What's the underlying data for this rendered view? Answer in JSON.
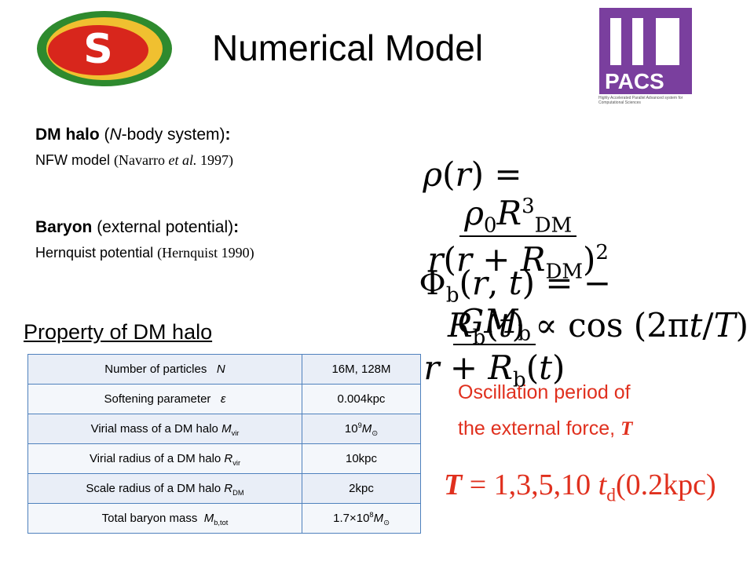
{
  "header": {
    "title": "Numerical Model",
    "logo_right_text": "PACS",
    "logo_right_caption": "Highly Accelerated Parallel Advanced system for Computational Sciences"
  },
  "dm_halo": {
    "heading": [
      {
        "text": "DM halo",
        "style": "b"
      },
      " (",
      {
        "text": "N",
        "style": "i"
      },
      "-body system)",
      {
        "text": ":",
        "style": "b"
      }
    ],
    "model": [
      "NFW model ",
      {
        "text": "(Navarro ",
        "style": "serif"
      },
      {
        "text": "et al.",
        "style": "serif-i"
      },
      {
        "text": " 1997)",
        "style": "serif"
      }
    ],
    "formula": {
      "lhs": [
        {
          "text": "ρ",
          "style": "i"
        },
        "(",
        {
          "text": "r",
          "style": "i"
        },
        ") ="
      ],
      "num": [
        {
          "text": "ρ",
          "style": "i"
        },
        {
          "text": "0",
          "style": "sub"
        },
        {
          "text": "R",
          "style": "i"
        },
        {
          "text": "3",
          "style": "sup"
        },
        {
          "text": "DM",
          "style": "sub"
        }
      ],
      "den": [
        {
          "text": "r",
          "style": "i"
        },
        "(",
        {
          "text": "r",
          "style": "i"
        },
        " + ",
        {
          "text": "R",
          "style": "i"
        },
        {
          "text": "DM",
          "style": "sub"
        },
        ")",
        {
          "text": "2",
          "style": "sup"
        }
      ]
    }
  },
  "baryon": {
    "heading": [
      {
        "text": "Baryon",
        "style": "b"
      },
      " (external potential)",
      {
        "text": ":",
        "style": "b"
      }
    ],
    "model": [
      "Hernquist potential ",
      {
        "text": "(Hernquist 1990)",
        "style": "serif"
      }
    ],
    "formula": {
      "lhs": [
        "Φ",
        {
          "text": "b",
          "style": "sub"
        },
        "(",
        {
          "text": "r",
          "style": "i"
        },
        ", ",
        {
          "text": "t",
          "style": "i"
        },
        ") = −"
      ],
      "num": [
        {
          "text": "GM",
          "style": "i"
        },
        {
          "text": "b",
          "style": "sub"
        }
      ],
      "den": [
        {
          "text": "r",
          "style": "i"
        },
        " + ",
        {
          "text": "R",
          "style": "i"
        },
        {
          "text": "b",
          "style": "sub"
        },
        "(",
        {
          "text": "t",
          "style": "i"
        },
        ")"
      ]
    },
    "oscillation": [
      {
        "text": "R",
        "style": "i"
      },
      {
        "text": "b",
        "style": "sub"
      },
      "(",
      {
        "text": "t",
        "style": "i"
      },
      ") ∝ cos (2π",
      {
        "text": "t",
        "style": "i"
      },
      "/",
      {
        "text": "T",
        "style": "i"
      },
      ")"
    ]
  },
  "property": {
    "heading": "Property of DM halo",
    "table": {
      "rows": [
        {
          "label": [
            "Number of particles   ",
            {
              "text": "N",
              "style": "i"
            }
          ],
          "value": [
            "16M, 128M"
          ]
        },
        {
          "label": [
            "Softening parameter   ",
            {
              "text": "ε",
              "style": "i"
            }
          ],
          "value": [
            "0.004kpc"
          ]
        },
        {
          "label": [
            "Virial mass of a DM halo ",
            {
              "text": "M",
              "style": "i"
            },
            {
              "text": "vir",
              "style": "sub"
            }
          ],
          "value": [
            "10",
            {
              "text": "9",
              "style": "sup"
            },
            {
              "text": "M",
              "style": "i"
            },
            {
              "text": "⊙",
              "style": "sub"
            }
          ]
        },
        {
          "label": [
            "Virial radius of a DM halo ",
            {
              "text": "R",
              "style": "i"
            },
            {
              "text": "vir",
              "style": "sub"
            }
          ],
          "value": [
            "10kpc"
          ]
        },
        {
          "label": [
            "Scale radius of a DM halo ",
            {
              "text": "R",
              "style": "i"
            },
            {
              "text": "DM",
              "style": "sub"
            }
          ],
          "value": [
            "2kpc"
          ]
        },
        {
          "label": [
            "Total baryon mass  ",
            {
              "text": "M",
              "style": "i"
            },
            {
              "text": "b,tot",
              "style": "sub"
            }
          ],
          "value": [
            "1.7×10",
            {
              "text": "8",
              "style": "sup"
            },
            {
              "text": "M",
              "style": "i"
            },
            {
              "text": "⊙",
              "style": "sub"
            }
          ]
        }
      ]
    }
  },
  "period": {
    "line1": [
      "Oscillation period of"
    ],
    "line2": [
      "the external force, ",
      {
        "text": "T",
        "style": "bi"
      }
    ],
    "values": [
      {
        "text": "T",
        "style": "bi"
      },
      {
        "text": " = 1,3,5,10 ",
        "style": "serif"
      },
      {
        "text": "t",
        "style": "i"
      },
      {
        "text": "d",
        "style": "sub"
      },
      {
        "text": "(0.2kpc)",
        "style": "serif"
      }
    ]
  }
}
